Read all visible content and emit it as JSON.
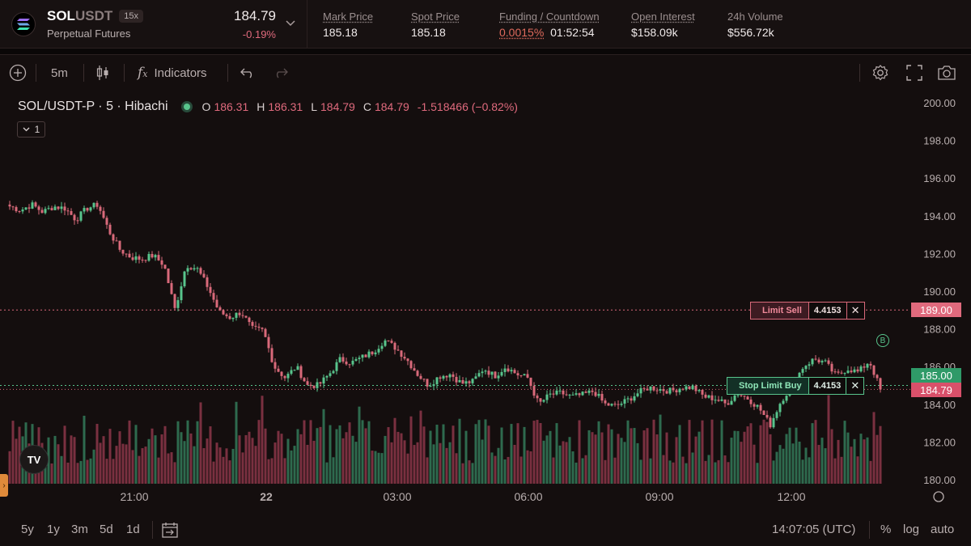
{
  "ticker": {
    "symbol_base": "SOL",
    "symbol_quote": "USDT",
    "leverage": "15x",
    "market_type": "Perpetual Futures",
    "last_price": "184.79",
    "change_pct": "-0.19%",
    "stats": {
      "mark_price_label": "Mark Price",
      "mark_price": "185.18",
      "spot_price_label": "Spot Price",
      "spot_price": "185.18",
      "funding_label": "Funding / Countdown",
      "funding_rate": "0.0015%",
      "countdown": "01:52:54",
      "open_interest_label": "Open Interest",
      "open_interest": "$158.09k",
      "volume_label": "24h Volume",
      "volume": "$556.72k"
    }
  },
  "toolbar": {
    "interval": "5m",
    "indicators_label": "Indicators",
    "icons": [
      "add-icon",
      "candles-icon",
      "fx-icon",
      "undo-icon",
      "redo-icon",
      "settings-icon",
      "fullscreen-icon",
      "camera-icon"
    ]
  },
  "legend": {
    "title": "SOL/USDT-P · 5 · Hibachi",
    "o_label": "O",
    "o": "186.31",
    "h_label": "H",
    "h": "186.31",
    "l_label": "L",
    "l": "184.79",
    "c_label": "C",
    "c": "184.79",
    "change": "-1.518466 (−0.82%)",
    "collapse_count": "1"
  },
  "chart_data": {
    "type": "candlestick",
    "y_axis_labels": [
      "200.00",
      "198.00",
      "196.00",
      "194.00",
      "192.00",
      "190.00",
      "188.00",
      "186.00",
      "184.00",
      "182.00",
      "180.00"
    ],
    "ylim": [
      180,
      200
    ],
    "x_axis_labels": [
      "21:00",
      "22",
      "03:00",
      "06:00",
      "09:00",
      "12:00"
    ],
    "close_path": [
      194.5,
      194.3,
      194.6,
      194.2,
      194.5,
      194.4,
      193.8,
      194.4,
      194.6,
      193.2,
      192.2,
      191.8,
      191.7,
      191.9,
      191.4,
      189.0,
      191.4,
      191.2,
      190.2,
      188.9,
      188.6,
      188.9,
      188.0,
      187.9,
      186.0,
      185.4,
      186.0,
      185.0,
      185.0,
      185.6,
      186.4,
      186.2,
      186.5,
      186.8,
      187.4,
      187.0,
      186.4,
      185.6,
      185.0,
      185.5,
      185.6,
      185.1,
      185.2,
      185.9,
      185.5,
      186.0,
      185.6,
      185.4,
      184.0,
      184.5,
      184.6,
      184.4,
      184.5,
      184.7,
      184.0,
      183.9,
      184.2,
      184.6,
      184.9,
      184.8,
      184.7,
      184.9,
      184.9,
      184.4,
      184.3,
      184.0,
      184.6,
      184.3,
      183.8,
      182.9,
      184.2,
      185.0,
      186.0,
      186.4,
      186.2,
      185.5,
      185.9,
      185.7,
      186.3,
      184.8
    ],
    "limit_sell": {
      "label": "Limit Sell",
      "qty": "4.4153",
      "price": "189.00"
    },
    "stop_limit_buy": {
      "label": "Stop Limit Buy",
      "qty": "4.4153",
      "price": "185.00"
    },
    "last_price_tag": "184.79",
    "marker": "B",
    "colors": {
      "up": "#58c48c",
      "down": "#d9697a",
      "vol_up": "#2e6a4e",
      "vol_down": "#7a3040"
    }
  },
  "bottom": {
    "ranges": [
      "5y",
      "1y",
      "3m",
      "5d",
      "1d"
    ],
    "time": "14:07:05 (UTC)",
    "percent": "%",
    "log": "log",
    "auto": "auto"
  },
  "watermark": "TV"
}
